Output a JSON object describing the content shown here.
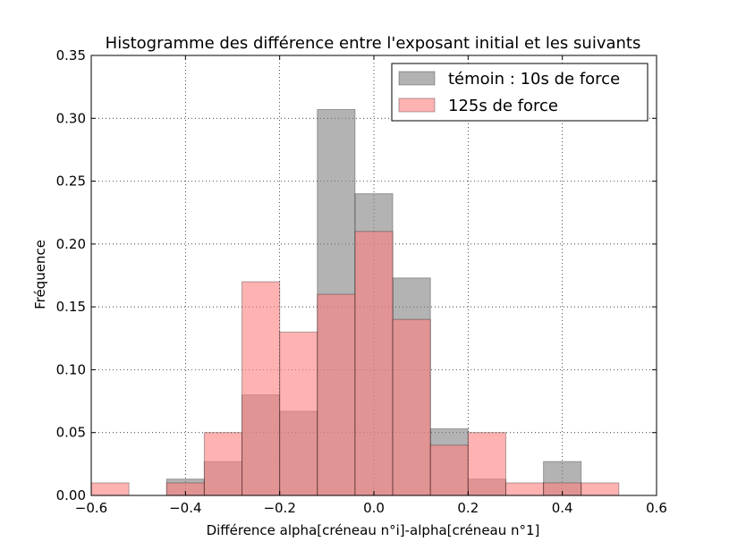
{
  "chart_data": {
    "type": "bar",
    "title": "Histogramme des différence entre l'exposant initial et les suivants",
    "xlabel": "Différence alpha[créneau n°i]-alpha[créneau n°1]",
    "ylabel": "Fréquence",
    "xlim": [
      -0.6,
      0.6
    ],
    "ylim": [
      0,
      0.35
    ],
    "xticks": [
      -0.6,
      -0.4,
      -0.2,
      0.0,
      0.2,
      0.4,
      0.6
    ],
    "xtick_labels": [
      "−0.6",
      "−0.4",
      "−0.2",
      "0.0",
      "0.2",
      "0.4",
      "0.6"
    ],
    "yticks": [
      0,
      0.05,
      0.1,
      0.15,
      0.2,
      0.25,
      0.3,
      0.35
    ],
    "ytick_labels": [
      "0.00",
      "0.05",
      "0.10",
      "0.15",
      "0.20",
      "0.25",
      "0.30",
      "0.35"
    ],
    "grid": true,
    "legend_position": "top-right",
    "series": [
      {
        "name": "témoin : 10s de force",
        "color": "#808080",
        "bins": [
          [
            -0.44,
            -0.36
          ],
          [
            -0.36,
            -0.28
          ],
          [
            -0.28,
            -0.2
          ],
          [
            -0.2,
            -0.12
          ],
          [
            -0.12,
            -0.04
          ],
          [
            -0.04,
            0.04
          ],
          [
            0.04,
            0.12
          ],
          [
            0.12,
            0.2
          ],
          [
            0.2,
            0.28
          ],
          [
            0.36,
            0.44
          ]
        ],
        "values": [
          0.013,
          0.027,
          0.08,
          0.067,
          0.307,
          0.24,
          0.173,
          0.053,
          0.013,
          0.027
        ]
      },
      {
        "name": "125s de force",
        "color": "#ff7f7f",
        "bins": [
          [
            -0.6,
            -0.52
          ],
          [
            -0.44,
            -0.36
          ],
          [
            -0.36,
            -0.28
          ],
          [
            -0.28,
            -0.2
          ],
          [
            -0.2,
            -0.12
          ],
          [
            -0.12,
            -0.04
          ],
          [
            -0.04,
            0.04
          ],
          [
            0.04,
            0.12
          ],
          [
            0.12,
            0.2
          ],
          [
            0.2,
            0.28
          ],
          [
            0.28,
            0.36
          ],
          [
            0.36,
            0.44
          ],
          [
            0.44,
            0.52
          ]
        ],
        "values": [
          0.01,
          0.01,
          0.05,
          0.17,
          0.13,
          0.16,
          0.21,
          0.14,
          0.04,
          0.05,
          0.01,
          0.01,
          0.01
        ]
      }
    ]
  }
}
